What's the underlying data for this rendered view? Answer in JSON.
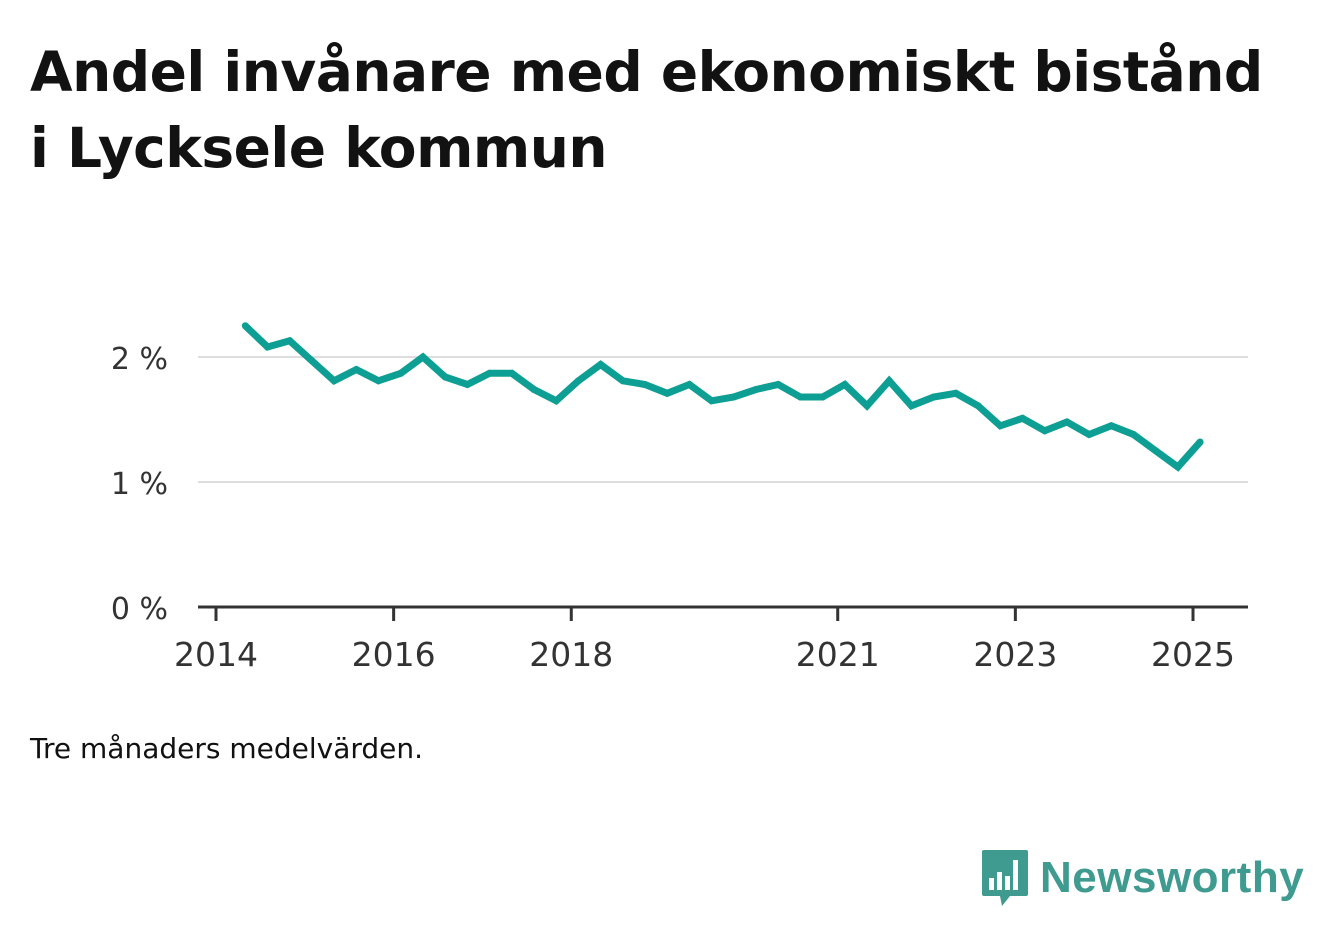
{
  "title": "Andel invånare med ekonomiskt bistånd i Lycksele kommun",
  "note": "Tre månaders medelvärden.",
  "brand": {
    "name": "Newsworthy",
    "icon": "bar-chart-speech-bubble-icon",
    "color": "#3f9a8f"
  },
  "colors": {
    "line": "#0e9f94",
    "grid": "#dddddd",
    "axis": "#333333",
    "text": "#333333"
  },
  "chart_data": {
    "type": "line",
    "title": "Andel invånare med ekonomiskt bistånd i Lycksele kommun",
    "xlabel": "",
    "ylabel": "",
    "ylim": [
      0,
      2.3
    ],
    "yticks": [
      {
        "value": 0,
        "label": "0 %"
      },
      {
        "value": 1,
        "label": "1 %"
      },
      {
        "value": 2,
        "label": "2 %"
      }
    ],
    "xlim": [
      2014,
      2025.33
    ],
    "xticks": [
      {
        "value": 2014,
        "label": "2014"
      },
      {
        "value": 2016,
        "label": "2016"
      },
      {
        "value": 2018,
        "label": "2018"
      },
      {
        "value": 2021,
        "label": "2021"
      },
      {
        "value": 2023,
        "label": "2023"
      },
      {
        "value": 2025,
        "label": "2025"
      }
    ],
    "grid": true,
    "series": [
      {
        "x": [
          2014.33,
          2014.58,
          2014.83,
          2015.08,
          2015.33,
          2015.58,
          2015.83,
          2016.08,
          2016.33,
          2016.58,
          2016.83,
          2017.08,
          2017.33,
          2017.58,
          2017.83,
          2018.08,
          2018.33,
          2018.58,
          2018.83,
          2019.08,
          2019.33,
          2019.58,
          2019.83,
          2020.08,
          2020.33,
          2020.58,
          2020.83,
          2021.08,
          2021.33,
          2021.58,
          2021.83,
          2022.08,
          2022.33,
          2022.58,
          2022.83,
          2023.08,
          2023.33,
          2023.58,
          2023.83,
          2024.08,
          2024.33,
          2024.58,
          2024.83,
          2025.08
        ],
        "values": [
          2.25,
          2.08,
          2.13,
          1.97,
          1.81,
          1.9,
          1.81,
          1.87,
          2.0,
          1.84,
          1.78,
          1.87,
          1.87,
          1.74,
          1.65,
          1.81,
          1.94,
          1.81,
          1.78,
          1.71,
          1.78,
          1.65,
          1.68,
          1.74,
          1.78,
          1.68,
          1.68,
          1.78,
          1.61,
          1.81,
          1.61,
          1.68,
          1.71,
          1.61,
          1.45,
          1.51,
          1.41,
          1.48,
          1.38,
          1.45,
          1.38,
          1.25,
          1.12,
          1.32
        ]
      }
    ]
  }
}
